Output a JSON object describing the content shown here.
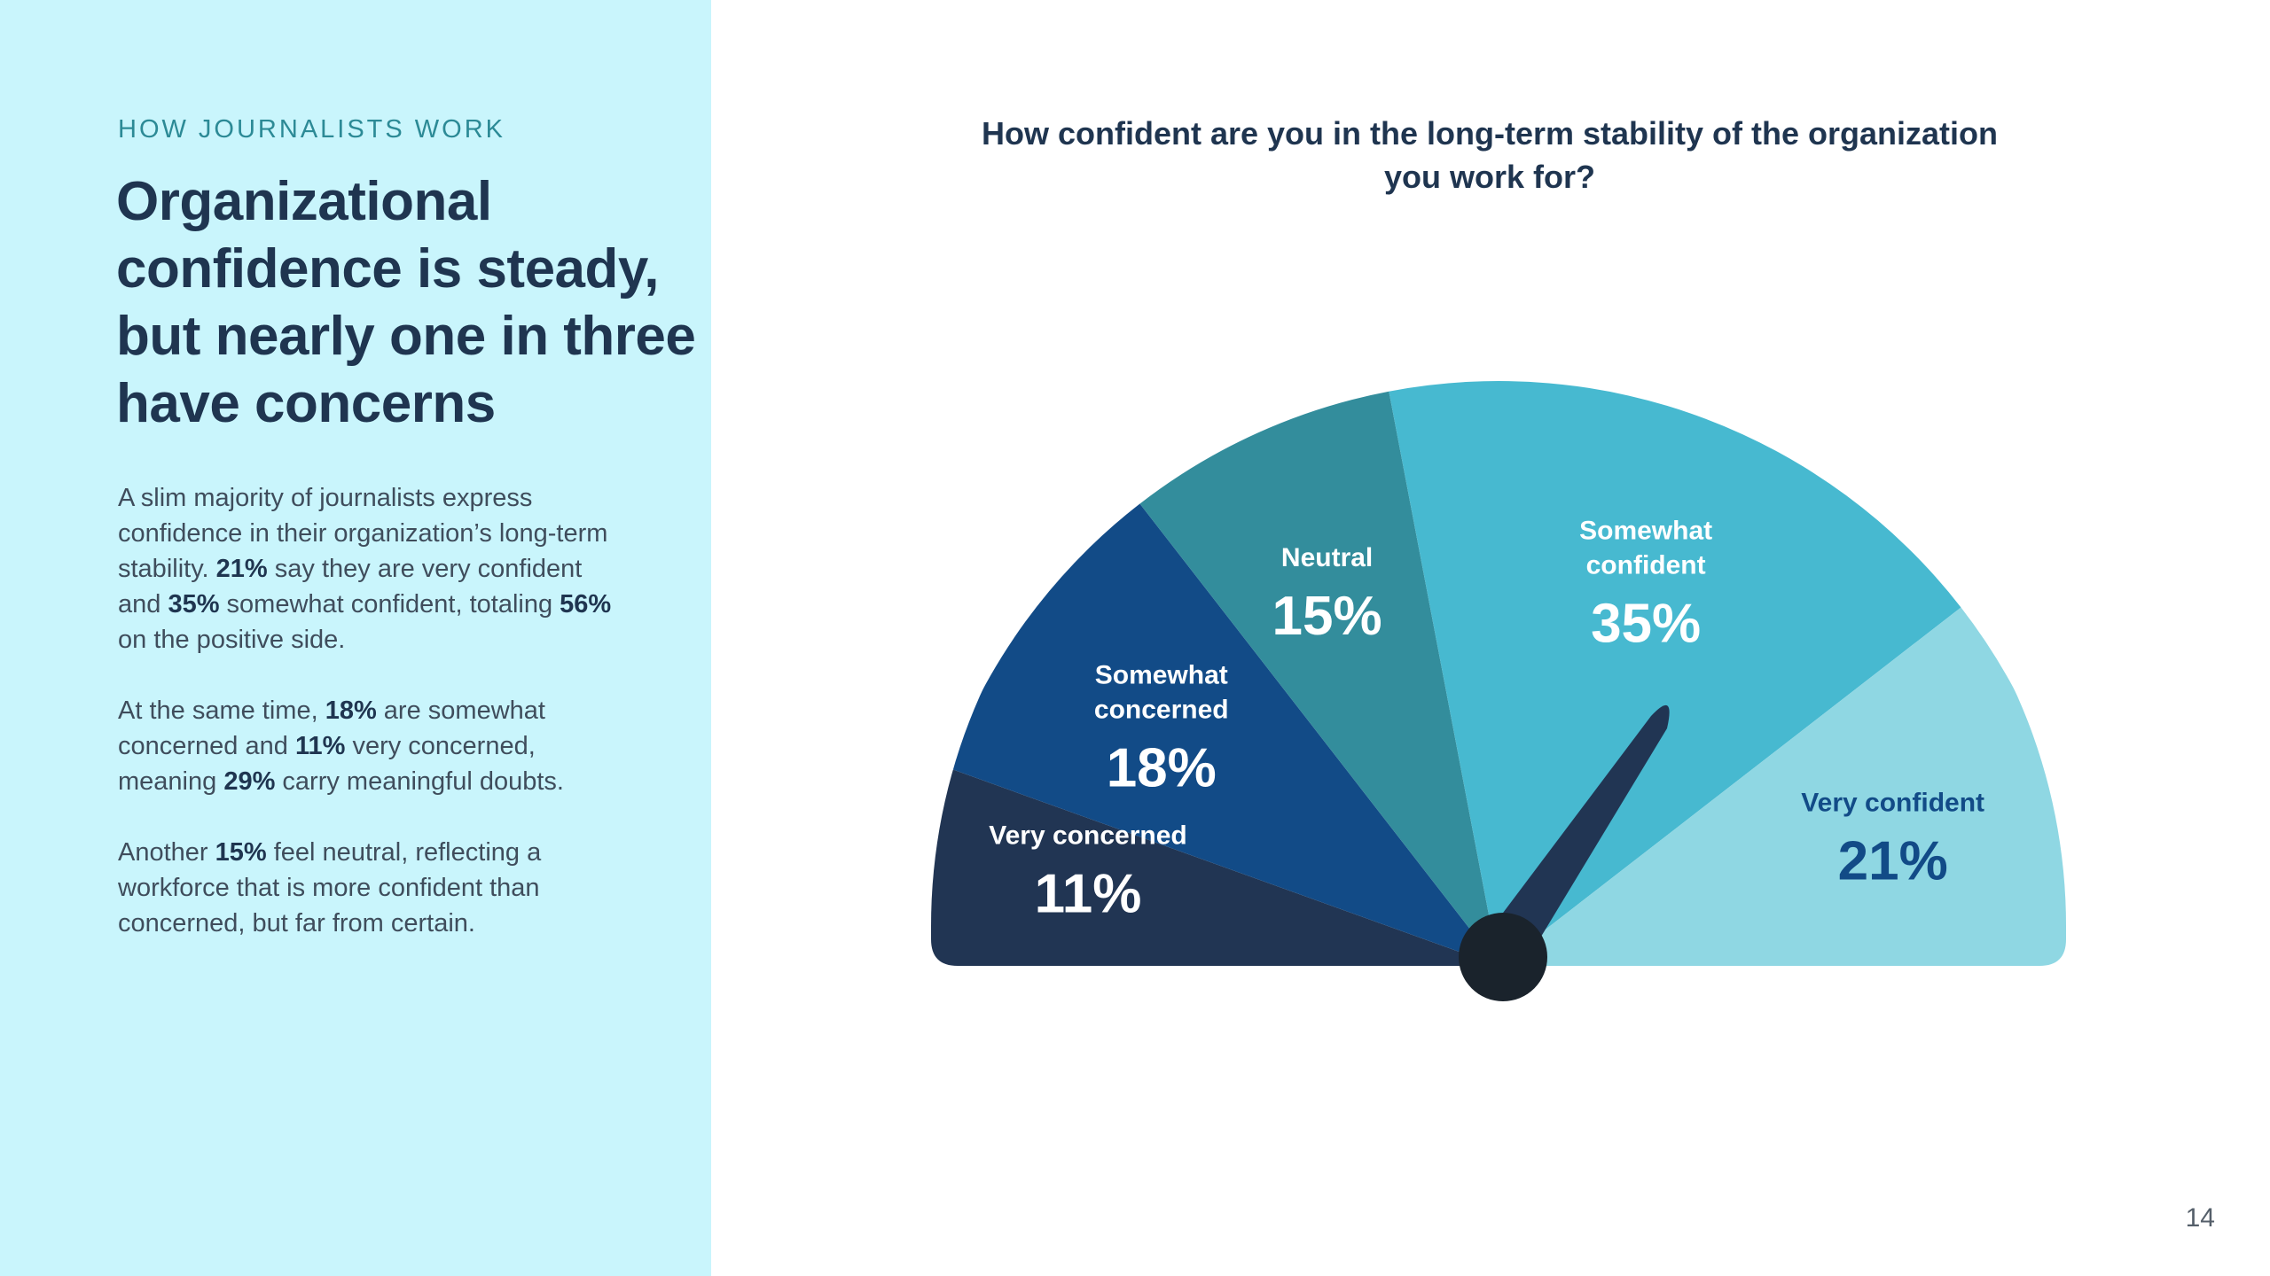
{
  "left": {
    "eyebrow": "HOW JOURNALISTS WORK",
    "headline": "Organizational confidence is steady, but nearly one in three have concerns",
    "paragraphs": [
      [
        {
          "t": "A slim majority of journalists express confidence in their organization’s long-term stability. ",
          "b": false
        },
        {
          "t": "21%",
          "b": true
        },
        {
          "t": " say they are very confident and ",
          "b": false
        },
        {
          "t": "35%",
          "b": true
        },
        {
          "t": " somewhat confident, totaling ",
          "b": false
        },
        {
          "t": "56%",
          "b": true
        },
        {
          "t": " on the positive side.",
          "b": false
        }
      ],
      [
        {
          "t": "At the same time, ",
          "b": false
        },
        {
          "t": "18%",
          "b": true
        },
        {
          "t": " are somewhat concerned and ",
          "b": false
        },
        {
          "t": "11%",
          "b": true
        },
        {
          "t": " very concerned, meaning ",
          "b": false
        },
        {
          "t": "29%",
          "b": true
        },
        {
          "t": " carry meaningful doubts.",
          "b": false
        }
      ],
      [
        {
          "t": "Another ",
          "b": false
        },
        {
          "t": "15%",
          "b": true
        },
        {
          "t": " feel neutral, reflecting a workforce that is more confident than concerned, but far from certain.",
          "b": false
        }
      ]
    ]
  },
  "page_number": "14",
  "colors": {
    "very_concerned": "#213553",
    "somewhat_concerned": "#124b87",
    "neutral": "#338d9c",
    "somewhat_confident": "#47b9d0",
    "very_confident": "#8fd7e3",
    "needle": "#213553",
    "hub": "#1a232c"
  },
  "chart_data": {
    "type": "gauge",
    "title": "How confident are you in the long-term stability of the organization you work for?",
    "categories": [
      "Very concerned",
      "Somewhat concerned",
      "Neutral",
      "Somewhat confident",
      "Very confident"
    ],
    "values": [
      11,
      18,
      15,
      35,
      21
    ],
    "value_labels": [
      "11%",
      "18%",
      "15%",
      "35%",
      "21%"
    ],
    "label_lines": [
      [
        "Very concerned"
      ],
      [
        "Somewhat",
        "concerned"
      ],
      [
        "Neutral"
      ],
      [
        "Somewhat",
        "confident"
      ],
      [
        "Very confident"
      ]
    ],
    "label_colors": [
      "#ffffff",
      "#ffffff",
      "#ffffff",
      "#ffffff",
      "#124b87"
    ]
  }
}
